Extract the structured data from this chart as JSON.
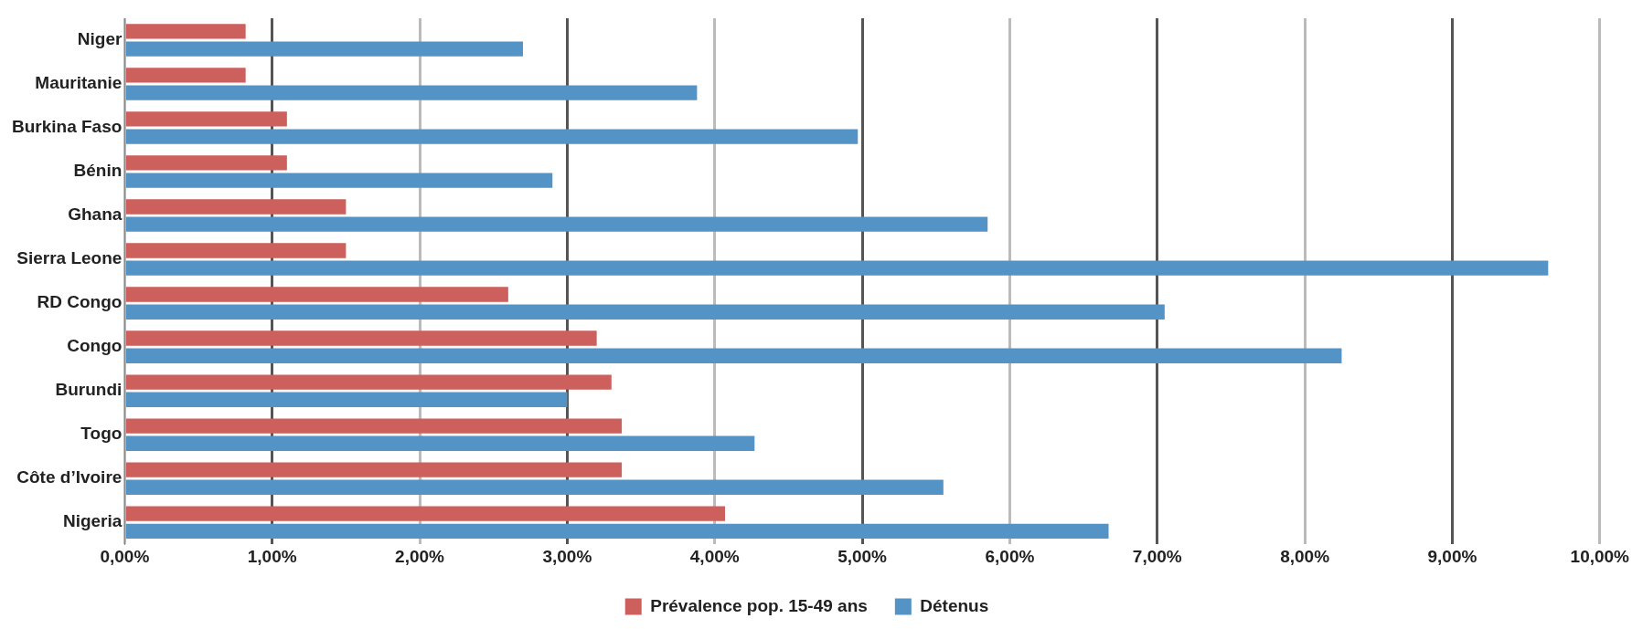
{
  "chart_data": {
    "type": "bar",
    "orientation": "horizontal",
    "categories": [
      "Niger",
      "Mauritanie",
      "Burkina Faso",
      "Bénin",
      "Ghana",
      "Sierra Leone",
      "RD Congo",
      "Congo",
      "Burundi",
      "Togo",
      "Côte d’Ivoire",
      "Nigeria"
    ],
    "series": [
      {
        "name": "Prévalence pop. 15-49 ans",
        "color": "#cd5f5c",
        "values": [
          0.82,
          0.82,
          1.1,
          1.1,
          1.5,
          1.5,
          2.6,
          3.2,
          3.3,
          3.37,
          3.37,
          4.07
        ]
      },
      {
        "name": "Détenus",
        "color": "#5493c5",
        "values": [
          2.7,
          3.88,
          4.97,
          2.9,
          5.85,
          9.65,
          7.05,
          8.25,
          3.0,
          4.27,
          5.55,
          6.67
        ]
      }
    ],
    "xlim": [
      0,
      10
    ],
    "xticks": [
      {
        "value": 0,
        "label": "0,00%"
      },
      {
        "value": 1,
        "label": "1,00%"
      },
      {
        "value": 2,
        "label": "2,00%"
      },
      {
        "value": 3,
        "label": "3,00%"
      },
      {
        "value": 4,
        "label": "4,00%"
      },
      {
        "value": 5,
        "label": "5,00%"
      },
      {
        "value": 6,
        "label": "6,00%"
      },
      {
        "value": 7,
        "label": "7,00%"
      },
      {
        "value": 8,
        "label": "8,00%"
      },
      {
        "value": 9,
        "label": "9,00%"
      },
      {
        "value": 10,
        "label": "10,00%"
      }
    ],
    "grid": "x",
    "legend": "bottom"
  }
}
